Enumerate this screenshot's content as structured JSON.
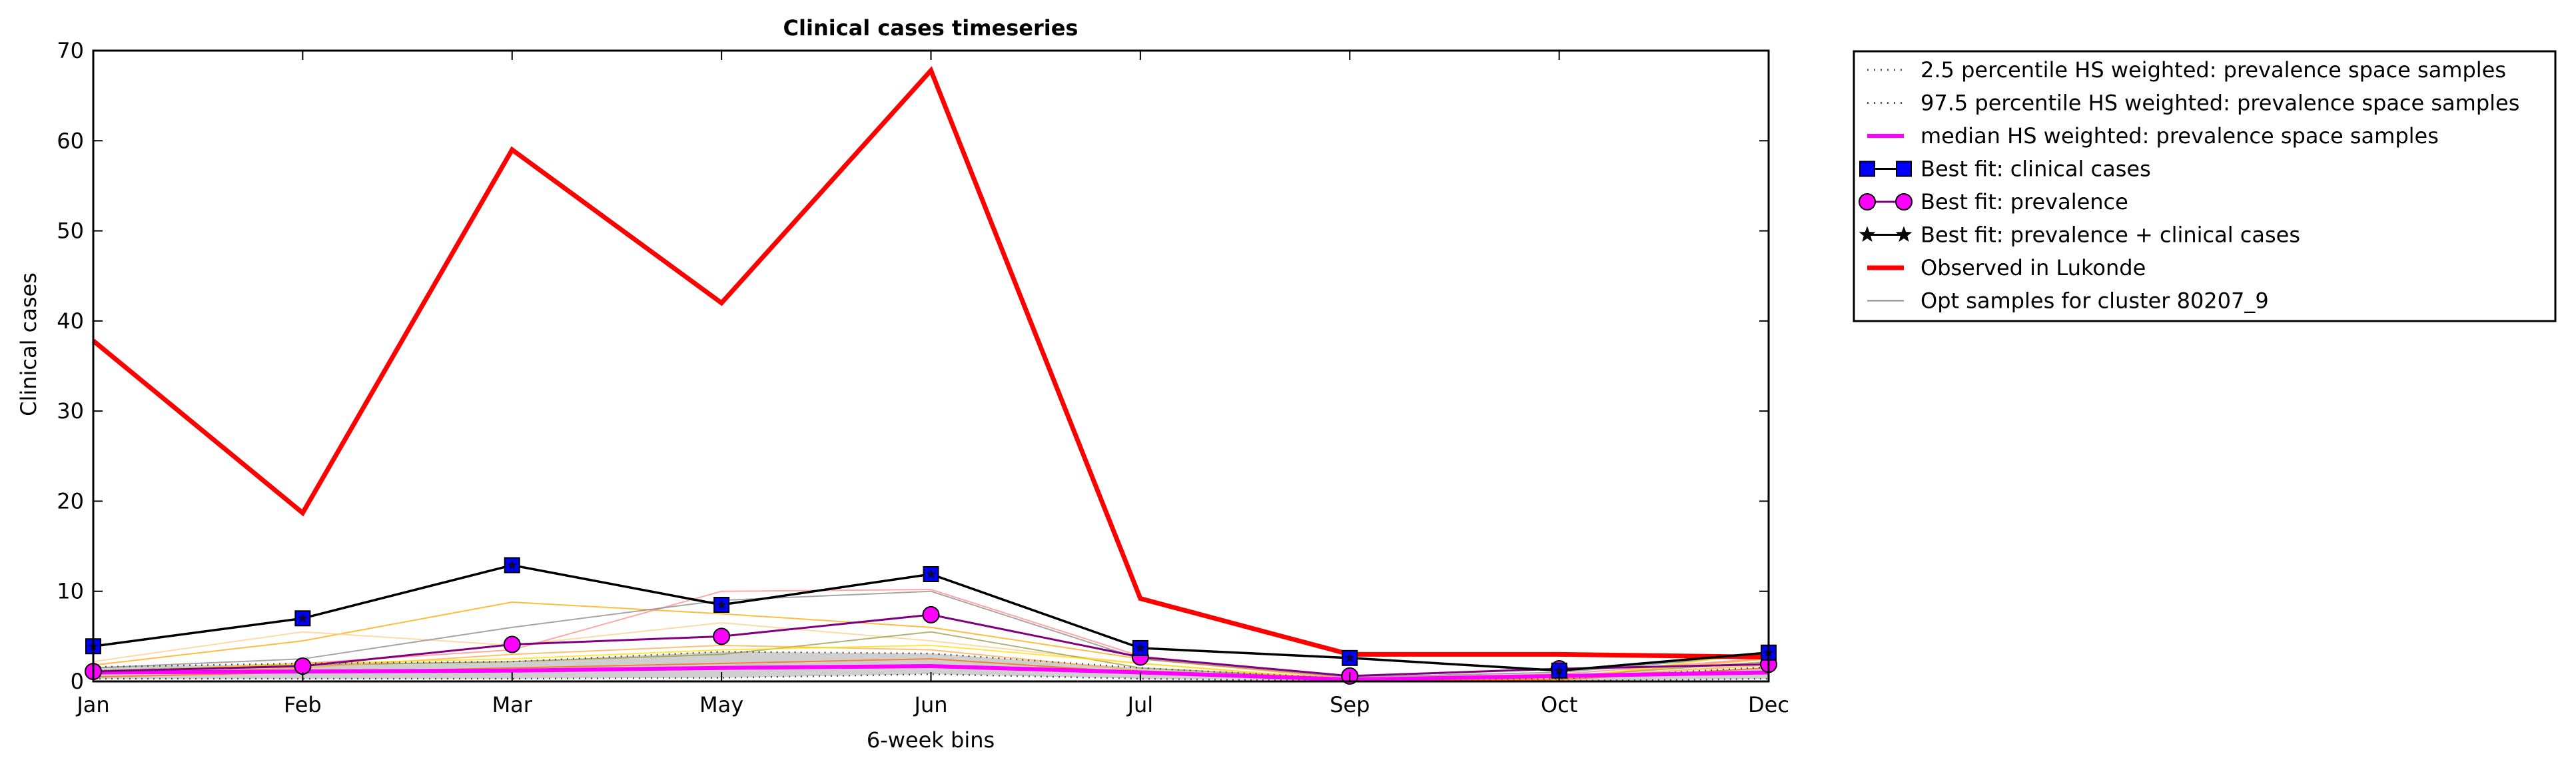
{
  "chart_data": {
    "type": "line",
    "title": "Clinical cases timeseries",
    "xlabel": "6-week bins",
    "ylabel": "Clinical cases",
    "categories": [
      "Jan",
      "Feb",
      "Mar",
      "May",
      "Jun",
      "Jul",
      "Sep",
      "Oct",
      "Dec"
    ],
    "ylim": [
      0,
      70
    ],
    "yticks": [
      0,
      10,
      20,
      30,
      40,
      50,
      60,
      70
    ],
    "grid": false,
    "legend_position": "outside-top-right",
    "series": [
      {
        "name": "2.5 percentile HS weighted: prevalence space samples",
        "style": "dotted",
        "color": "#555555",
        "values": [
          0.3,
          0.3,
          0.3,
          0.4,
          0.8,
          0.3,
          0.05,
          0.05,
          0.3
        ]
      },
      {
        "name": "97.5 percentile HS weighted: prevalence space samples",
        "style": "dotted",
        "color": "#555555",
        "values": [
          1.6,
          2.0,
          2.2,
          3.3,
          3.1,
          1.5,
          0.3,
          0.3,
          1.6
        ]
      },
      {
        "name": "median HS weighted: prevalence space samples",
        "style": "solid",
        "color": "#ff00ff",
        "values": [
          1.0,
          1.1,
          1.2,
          1.5,
          1.7,
          1.0,
          0.2,
          0.6,
          1.0
        ]
      },
      {
        "name": "Best fit: clinical cases",
        "style": "square-marker",
        "color": "#000000",
        "marker_color": "#0000ff",
        "values": [
          3.9,
          7.0,
          12.9,
          8.5,
          11.9,
          3.7,
          2.6,
          1.2,
          3.2
        ]
      },
      {
        "name": "Best fit: prevalence",
        "style": "circle-marker",
        "color": "#800080",
        "marker_color": "#ff00ff",
        "values": [
          1.1,
          1.7,
          4.1,
          5.0,
          7.4,
          2.7,
          0.6,
          1.4,
          1.9
        ]
      },
      {
        "name": "Best fit: prevalence + clinical cases",
        "style": "star-marker",
        "color": "#000000",
        "marker_color": "#000000",
        "values": [
          3.9,
          7.0,
          12.9,
          8.5,
          11.9,
          3.7,
          2.6,
          1.2,
          3.2
        ]
      },
      {
        "name": "Observed in Lukonde",
        "style": "solid-thick",
        "color": "#ff0000",
        "values": [
          37.8,
          18.7,
          59.0,
          42.0,
          67.8,
          9.2,
          3.0,
          3.0,
          2.7
        ]
      },
      {
        "name": "Opt samples for cluster 80207_9",
        "style": "thin",
        "color": "#888888",
        "values": [
          1.5,
          2.5,
          6.0,
          9.0,
          10.0,
          2.5,
          0.5,
          1.0,
          3.0
        ]
      }
    ],
    "sample_lines": [
      {
        "color": "#ffa500",
        "values": [
          1.8,
          4.5,
          8.8,
          7.5,
          6.0,
          2.5,
          0.3,
          0.5,
          2.5
        ]
      },
      {
        "color": "#ffcc88",
        "values": [
          2.2,
          5.5,
          4.0,
          6.5,
          4.5,
          2.0,
          0.2,
          0.3,
          2.0
        ]
      },
      {
        "color": "#ff8888",
        "values": [
          1.0,
          2.0,
          3.5,
          10.0,
          10.2,
          2.8,
          0.4,
          0.8,
          2.6
        ]
      },
      {
        "color": "#888888",
        "values": [
          1.5,
          2.5,
          6.0,
          9.0,
          10.0,
          2.5,
          0.5,
          1.0,
          3.0
        ]
      },
      {
        "color": "#999944",
        "values": [
          1.2,
          1.8,
          2.2,
          3.0,
          5.5,
          1.5,
          0.3,
          0.5,
          2.2
        ]
      },
      {
        "color": "#ffaa44",
        "values": [
          0.8,
          1.5,
          3.0,
          4.0,
          3.5,
          1.2,
          0.2,
          0.4,
          1.8
        ]
      },
      {
        "color": "#ffdd00",
        "values": [
          1.0,
          2.0,
          2.5,
          3.5,
          4.0,
          2.0,
          0.1,
          0.2,
          3.3
        ]
      },
      {
        "color": "#ff6600",
        "values": [
          0.5,
          1.0,
          1.5,
          2.0,
          2.5,
          1.0,
          0.1,
          0.2,
          1.5
        ]
      }
    ]
  }
}
